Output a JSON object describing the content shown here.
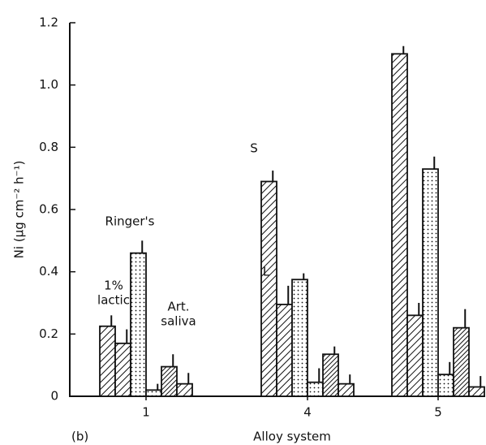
{
  "chart_data": {
    "type": "bar",
    "panel_label": "(b)",
    "xlabel": "Alloy system",
    "ylabel": "Ni (μg cm⁻² h⁻¹)",
    "categories": [
      "1",
      "4",
      "5"
    ],
    "ylim": [
      0,
      1.2
    ],
    "yticks": [
      0,
      0.2,
      0.4,
      0.6,
      0.8,
      {
        "value": 1,
        "label": "1.0"
      },
      1.2
    ],
    "color": "#111111",
    "series": [
      {
        "pattern": "hatch",
        "values": [
          0.225,
          0.69,
          1.1
        ],
        "errors": [
          0.035,
          0.035,
          0.025
        ]
      },
      {
        "pattern": "hatch",
        "values": [
          0.17,
          0.295,
          0.26
        ],
        "errors": [
          0.045,
          0.06,
          0.04
        ]
      },
      {
        "pattern": "dots",
        "values": [
          0.46,
          0.375,
          0.73
        ],
        "errors": [
          0.04,
          0.02,
          0.04
        ]
      },
      {
        "pattern": "dots",
        "values": [
          0.02,
          0.045,
          0.07
        ],
        "errors": [
          0.02,
          0.045,
          0.04
        ]
      },
      {
        "pattern": "hatch-dense",
        "values": [
          0.095,
          0.135,
          0.22
        ],
        "errors": [
          0.04,
          0.025,
          0.06
        ]
      },
      {
        "pattern": "hatch",
        "values": [
          0.04,
          0.04,
          0.03
        ],
        "errors": [
          0.035,
          0.03,
          0.035
        ]
      }
    ],
    "annotations": [
      {
        "lines": [
          "1%",
          "lactic"
        ]
      },
      {
        "lines": [
          "Ringer's"
        ]
      },
      {
        "lines": [
          "Art.",
          "saliva"
        ]
      },
      {
        "lines": [
          "S"
        ]
      },
      {
        "lines": [
          "L"
        ]
      }
    ]
  }
}
